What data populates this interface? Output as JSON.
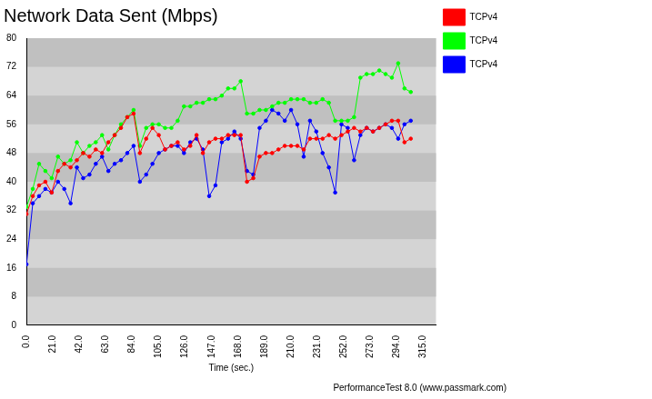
{
  "chart_data": {
    "type": "line",
    "title": "Network Data Sent (Mbps)",
    "x_label": "Time (sec.)",
    "annotations": [
      "PerformanceTest 8.0 (www.passmark.com)"
    ],
    "x": [
      0,
      5,
      10,
      15,
      20,
      25,
      30,
      35,
      40,
      45,
      50,
      55,
      60,
      65,
      70,
      75,
      80,
      85,
      90,
      95,
      100,
      105,
      110,
      115,
      120,
      125,
      130,
      135,
      140,
      145,
      150,
      155,
      160,
      165,
      170,
      175,
      180,
      185,
      190,
      195,
      200,
      205,
      210,
      215,
      220,
      225,
      230,
      235,
      240,
      245,
      250,
      255,
      260,
      265,
      270,
      275,
      280,
      285,
      290,
      295,
      300,
      305
    ],
    "series": [
      {
        "name": "TCPv4",
        "color": "#ff0000",
        "marker": "circle",
        "line_style": "solid",
        "values": [
          31,
          36,
          39,
          40,
          37,
          43,
          45,
          44,
          46,
          48,
          47,
          49,
          48,
          51,
          53,
          55,
          58,
          59,
          48,
          52,
          55,
          53,
          49,
          50,
          51,
          49,
          50,
          53,
          48,
          51,
          52,
          52,
          53,
          53,
          53,
          40,
          41,
          47,
          48,
          48,
          49,
          50,
          50,
          50,
          49,
          52,
          52,
          52,
          53,
          52,
          53,
          54,
          55,
          54,
          55,
          54,
          55,
          56,
          57,
          57,
          51,
          52
        ]
      },
      {
        "name": "TCPv4",
        "color": "#00ff00",
        "marker": "circle",
        "line_style": "solid",
        "values": [
          33,
          38,
          45,
          43,
          41,
          47,
          45,
          46,
          51,
          48,
          50,
          51,
          53,
          49,
          53,
          56,
          58,
          60,
          50,
          55,
          56,
          56,
          55,
          55,
          57,
          61,
          61,
          62,
          62,
          63,
          63,
          64,
          66,
          66,
          68,
          59,
          59,
          60,
          60,
          61,
          62,
          62,
          63,
          63,
          63,
          62,
          62,
          63,
          62,
          57,
          57,
          57,
          58,
          69,
          70,
          70,
          71,
          70,
          69,
          73,
          66,
          65
        ]
      },
      {
        "name": "TCPv4",
        "color": "#0000ff",
        "marker": "circle",
        "line_style": "solid",
        "values": [
          17,
          34,
          36,
          38,
          37,
          40,
          38,
          34,
          44,
          41,
          42,
          45,
          47,
          43,
          45,
          46,
          48,
          50,
          40,
          42,
          45,
          48,
          49,
          50,
          50,
          48,
          51,
          52,
          49,
          36,
          39,
          51,
          52,
          54,
          52,
          43,
          42,
          55,
          57,
          60,
          59,
          57,
          60,
          56,
          47,
          57,
          54,
          48,
          44,
          37,
          56,
          55,
          46,
          53,
          55,
          54,
          55,
          56,
          55,
          52,
          56,
          57
        ]
      }
    ],
    "xlim": [
      0,
      325
    ],
    "xticks": [
      {
        "value": 0,
        "label": "0.0"
      },
      {
        "value": 21,
        "label": "21.0"
      },
      {
        "value": 42,
        "label": "42.0"
      },
      {
        "value": 63,
        "label": "63.0"
      },
      {
        "value": 84,
        "label": "84.0"
      },
      {
        "value": 105,
        "label": "105.0"
      },
      {
        "value": 126,
        "label": "126.0"
      },
      {
        "value": 147,
        "label": "147.0"
      },
      {
        "value": 168,
        "label": "168.0"
      },
      {
        "value": 189,
        "label": "189.0"
      },
      {
        "value": 210,
        "label": "210.0"
      },
      {
        "value": 231,
        "label": "231.0"
      },
      {
        "value": 252,
        "label": "252.0"
      },
      {
        "value": 273,
        "label": "273.0"
      },
      {
        "value": 294,
        "label": "294.0"
      },
      {
        "value": 315,
        "label": "315.0"
      }
    ],
    "ylim": [
      0,
      80
    ],
    "yticks": [
      0,
      8,
      16,
      24,
      32,
      40,
      48,
      56,
      64,
      72,
      80
    ],
    "grid": true,
    "legend": "right"
  }
}
